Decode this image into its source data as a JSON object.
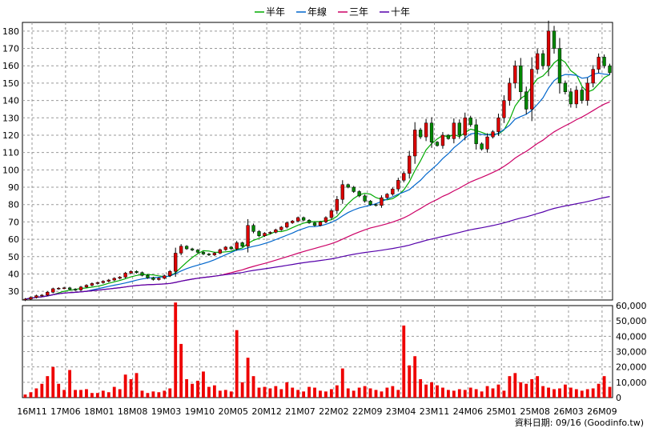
{
  "chart_data": [
    {
      "type": "candlestick",
      "legend": [
        {
          "name": "半年",
          "color": "#00aa00"
        },
        {
          "name": "年線",
          "color": "#0066cc"
        },
        {
          "name": "三年",
          "color": "#cc0066"
        },
        {
          "name": "十年",
          "color": "#5500aa"
        }
      ],
      "ylim": [
        25,
        185
      ],
      "yticks": [
        30,
        40,
        50,
        60,
        70,
        80,
        90,
        100,
        110,
        120,
        130,
        140,
        150,
        160,
        170,
        180
      ],
      "grid": true,
      "colors": {
        "up": "#dd0000",
        "down": "#008800",
        "wick": "#000000"
      },
      "close": [
        25.5,
        26.5,
        27.5,
        27.8,
        29.5,
        31.5,
        31.8,
        32.0,
        31.2,
        30.8,
        32.5,
        33.5,
        34.5,
        35.0,
        35.8,
        36.5,
        37.5,
        38.2,
        40.5,
        41.5,
        40.8,
        39.2,
        37.8,
        36.8,
        37.5,
        39.0,
        41.5,
        52.0,
        56.0,
        54.5,
        53.8,
        52.5,
        51.5,
        51.0,
        52.0,
        54.0,
        55.5,
        54.5,
        58.0,
        56.0,
        68.0,
        64.5,
        62.0,
        63.5,
        64.0,
        65.5,
        67.0,
        69.5,
        70.5,
        72.5,
        71.0,
        69.5,
        68.0,
        70.0,
        72.5,
        76.5,
        83.0,
        91.5,
        90.0,
        87.5,
        85.0,
        82.0,
        80.0,
        79.5,
        84.0,
        86.0,
        89.0,
        94.0,
        98.0,
        108.0,
        123.0,
        119.0,
        127.0,
        116.0,
        114.0,
        120.0,
        118.0,
        127.0,
        120.0,
        130.0,
        126.0,
        115.0,
        112.0,
        119.0,
        122.0,
        130.0,
        140.0,
        150.0,
        160.0,
        145.0,
        135.0,
        158.0,
        167.0,
        160.0,
        180.0,
        170.0,
        150.0,
        145.0,
        138.0,
        146.0,
        140.0,
        150.0,
        158.0,
        165.0,
        160.0,
        156.0
      ],
      "volume_ylim": [
        0,
        60000
      ],
      "volume_ticks": [
        "0",
        "10,000",
        "20,000",
        "30,000",
        "40,000",
        "50,000",
        "60,000"
      ],
      "volume": [
        2000,
        3500,
        6000,
        9000,
        14000,
        20000,
        9000,
        5000,
        18000,
        5000,
        5000,
        5500,
        3000,
        3000,
        4500,
        3500,
        7000,
        5500,
        15000,
        12000,
        16000,
        4500,
        3000,
        4000,
        3500,
        4500,
        6000,
        62000,
        35000,
        12000,
        9000,
        11000,
        17000,
        7000,
        8000,
        4500,
        5000,
        4000,
        44000,
        10000,
        26000,
        14000,
        6500,
        7000,
        6000,
        7500,
        5500,
        10000,
        6500,
        5000,
        4000,
        7000,
        6500,
        4500,
        4000,
        5500,
        8000,
        19000,
        6000,
        4500,
        6500,
        7500,
        6000,
        5000,
        4000,
        6500,
        7500,
        5000,
        47000,
        21000,
        27000,
        12000,
        8500,
        10000,
        8000,
        6500,
        5000,
        4500,
        5500,
        5000,
        6500,
        5500,
        4000,
        7500,
        6000,
        8500,
        4500,
        14000,
        16000,
        10000,
        9000,
        12000,
        14000,
        7500,
        6500,
        5500,
        6000,
        8500,
        6500,
        5500,
        4500,
        5500,
        6000,
        9000,
        14000,
        7000
      ],
      "x_labels": [
        "16M11",
        "17M06",
        "18M01",
        "18M08",
        "19M03",
        "19M10",
        "20M05",
        "20M12",
        "21M07",
        "22M02",
        "22M09",
        "23M04",
        "23M11",
        "24M06",
        "25M01",
        "25M08",
        "26M03",
        "26M09"
      ]
    }
  ],
  "footer": {
    "credit": "資料日期: 09/16  (Goodinfo.tw)"
  }
}
